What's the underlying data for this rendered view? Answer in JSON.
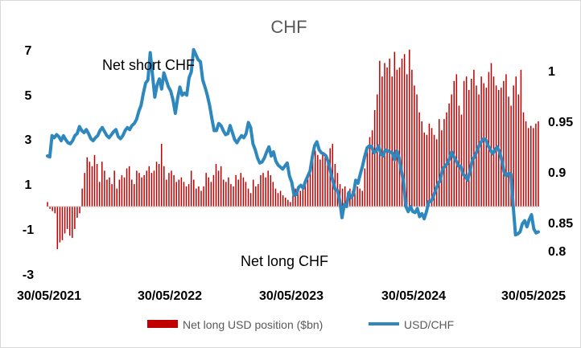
{
  "chart_data": {
    "type": "bar+line",
    "title": "CHF",
    "x_tick_labels": [
      "30/05/2021",
      "30/05/2022",
      "30/05/2023",
      "30/05/2024",
      "30/05/2025"
    ],
    "y_left_ticks": [
      -3,
      -1,
      1,
      3,
      5,
      7
    ],
    "y_left_range": [
      -3,
      7
    ],
    "y_right_ticks": [
      0.8,
      0.85,
      0.9,
      0.95,
      1
    ],
    "y_right_range": [
      0.8,
      1.0
    ],
    "annotations": [
      "Net short CHF",
      "Net long CHF"
    ],
    "legend_position": "bottom",
    "series": [
      {
        "name": "Net long USD position ($bn)",
        "type": "bar",
        "axis": "left",
        "color": "#c00000",
        "x_start": "30/05/2021",
        "x_step_days": 7,
        "values": [
          0.2,
          -0.1,
          -0.2,
          -0.3,
          -1.9,
          -1.6,
          -1.5,
          -1.2,
          -1.0,
          -1.3,
          -1.4,
          -1.0,
          -0.5,
          -0.3,
          0.8,
          1.5,
          2.2,
          2.0,
          1.8,
          2.3,
          1.9,
          1.1,
          2.0,
          1.6,
          1.2,
          1.3,
          1.0,
          1.6,
          0.8,
          1.2,
          1.4,
          1.3,
          1.7,
          1.8,
          1.2,
          1.0,
          1.6,
          1.5,
          1.3,
          1.4,
          1.6,
          1.8,
          1.5,
          1.6,
          2.0,
          1.9,
          2.8,
          1.8,
          1.2,
          1.5,
          1.6,
          1.4,
          1.1,
          1.2,
          1.3,
          1.1,
          0.9,
          1.0,
          1.6,
          1.2,
          0.8,
          0.9,
          0.7,
          0.9,
          1.5,
          1.3,
          1.1,
          1.4,
          1.9,
          1.6,
          1.8,
          1.2,
          1.1,
          1.3,
          1.0,
          0.9,
          1.4,
          1.2,
          1.5,
          1.3,
          1.1,
          0.8,
          0.6,
          1.2,
          0.9,
          1.0,
          1.4,
          1.5,
          1.3,
          1.6,
          1.4,
          1.1,
          0.8,
          0.6,
          0.7,
          0.5,
          0.4,
          0.3,
          0.2,
          0.5,
          0.8,
          0.6,
          0.7,
          0.9,
          1.2,
          1.4,
          1.6,
          2.2,
          2.5,
          2.3,
          2.1,
          2.4,
          2.2,
          2.0,
          2.6,
          2.8,
          1.9,
          1.5,
          1.0,
          0.8,
          0.9,
          0.6,
          0.8,
          0.7,
          0.6,
          0.9,
          0.8,
          0.7,
          1.7,
          2.7,
          3.1,
          3.4,
          4.3,
          5.0,
          6.5,
          5.8,
          6.4,
          6.2,
          6.6,
          5.8,
          6.9,
          6.1,
          6.2,
          6.6,
          6.8,
          5.9,
          7.0,
          6.1,
          5.4,
          5.0,
          4.2,
          3.8,
          3.3,
          3.2,
          3.7,
          3.5,
          3.2,
          3.0,
          3.9,
          3.4,
          3.9,
          4.2,
          4.6,
          5.0,
          5.6,
          5.9,
          4.5,
          4.1,
          5.6,
          5.8,
          5.2,
          5.7,
          6.1,
          5.4,
          5.0,
          5.8,
          5.5,
          5.3,
          6.0,
          6.4,
          5.8,
          5.4,
          5.2,
          5.3,
          5.6,
          5.9,
          4.9,
          4.5,
          5.4,
          5.8,
          5.0,
          6.1,
          4.2,
          3.8,
          3.5,
          3.6,
          3.5,
          3.7,
          3.8
        ]
      },
      {
        "name": "USD/CHF",
        "type": "line",
        "axis": "right",
        "color": "#2e88bd",
        "x_start": "30/05/2021",
        "x_step_days": 7,
        "values": [
          0.9,
          0.899,
          0.92,
          0.918,
          0.921,
          0.919,
          0.915,
          0.92,
          0.916,
          0.913,
          0.912,
          0.915,
          0.92,
          0.922,
          0.929,
          0.925,
          0.923,
          0.926,
          0.922,
          0.917,
          0.915,
          0.918,
          0.92,
          0.925,
          0.928,
          0.924,
          0.92,
          0.918,
          0.921,
          0.924,
          0.926,
          0.919,
          0.917,
          0.92,
          0.925,
          0.928,
          0.926,
          0.93,
          0.932,
          0.936,
          0.944,
          0.95,
          0.962,
          0.972,
          0.975,
          1.002,
          0.98,
          0.958,
          0.97,
          0.976,
          0.966,
          0.982,
          0.975,
          0.968,
          0.964,
          0.955,
          0.942,
          0.957,
          0.968,
          0.96,
          0.962,
          0.96,
          0.977,
          0.983,
          1.005,
          1.0,
          0.995,
          0.993,
          0.975,
          0.968,
          0.96,
          0.95,
          0.937,
          0.925,
          0.925,
          0.932,
          0.93,
          0.925,
          0.921,
          0.922,
          0.93,
          0.923,
          0.916,
          0.913,
          0.917,
          0.92,
          0.918,
          0.922,
          0.933,
          0.928,
          0.912,
          0.906,
          0.898,
          0.893,
          0.894,
          0.898,
          0.904,
          0.909,
          0.9,
          0.904,
          0.895,
          0.891,
          0.889,
          0.887,
          0.89,
          0.893,
          0.88,
          0.874,
          0.861,
          0.862,
          0.869,
          0.871,
          0.868,
          0.875,
          0.88,
          0.885,
          0.899,
          0.91,
          0.914,
          0.906,
          0.903,
          0.902,
          0.9,
          0.894,
          0.884,
          0.875,
          0.867,
          0.866,
          0.856,
          0.839,
          0.852,
          0.85,
          0.864,
          0.859,
          0.862,
          0.876,
          0.873,
          0.882,
          0.89,
          0.9,
          0.908,
          0.91,
          0.909,
          0.903,
          0.905,
          0.91,
          0.902,
          0.9,
          0.906,
          0.905,
          0.904,
          0.903,
          0.896,
          0.905,
          0.898,
          0.885,
          0.874,
          0.85,
          0.845,
          0.85,
          0.845,
          0.844,
          0.848,
          0.84,
          0.843,
          0.838,
          0.845,
          0.855,
          0.855,
          0.86,
          0.866,
          0.872,
          0.876,
          0.886,
          0.89,
          0.892,
          0.897,
          0.904,
          0.899,
          0.895,
          0.89,
          0.89,
          0.882,
          0.88,
          0.876,
          0.884,
          0.895,
          0.899,
          0.904,
          0.91,
          0.914,
          0.917,
          0.916,
          0.91,
          0.906,
          0.902,
          0.906,
          0.909,
          0.904,
          0.896,
          0.884,
          0.88,
          0.883,
          0.882,
          0.85,
          0.822,
          0.823,
          0.825,
          0.833,
          0.836,
          0.83,
          0.837,
          0.842,
          0.828,
          0.824,
          0.825
        ]
      }
    ]
  }
}
